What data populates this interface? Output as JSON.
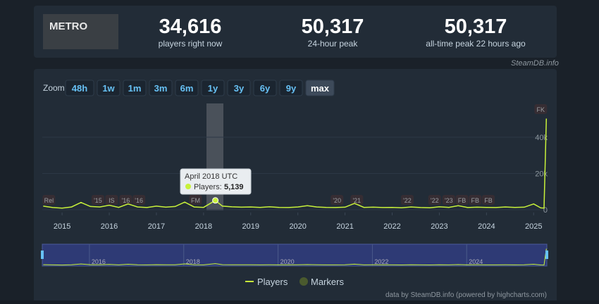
{
  "header": {
    "stats": [
      {
        "value": "34,616",
        "label": "players right now"
      },
      {
        "value": "50,317",
        "label": "24-hour peak"
      },
      {
        "value": "50,317",
        "label": "all-time peak 22 hours ago"
      }
    ],
    "credit": "SteamDB.info"
  },
  "zoom": {
    "label": "Zoom",
    "buttons": [
      "48h",
      "1w",
      "1m",
      "3m",
      "6m",
      "1y",
      "3y",
      "6y",
      "9y",
      "max"
    ]
  },
  "chart_data": {
    "type": "line",
    "x": [
      2014.6,
      2014.8,
      2015.0,
      2015.2,
      2015.4,
      2015.6,
      2015.8,
      2016.0,
      2016.2,
      2016.4,
      2016.6,
      2016.8,
      2017.0,
      2017.2,
      2017.4,
      2017.6,
      2017.8,
      2018.0,
      2018.25,
      2018.4,
      2018.6,
      2018.8,
      2019.0,
      2019.2,
      2019.4,
      2019.6,
      2019.8,
      2020.0,
      2020.2,
      2020.4,
      2020.6,
      2020.8,
      2021.0,
      2021.2,
      2021.4,
      2021.6,
      2021.8,
      2022.0,
      2022.2,
      2022.4,
      2022.6,
      2022.8,
      2023.0,
      2023.2,
      2023.4,
      2023.6,
      2023.8,
      2024.0,
      2024.2,
      2024.4,
      2024.6,
      2024.8,
      2025.0,
      2025.15,
      2025.22,
      2025.27
    ],
    "series": [
      {
        "name": "Players",
        "color": "#c8f23a",
        "values": [
          2000,
          1200,
          900,
          1500,
          4000,
          1800,
          1500,
          2500,
          1300,
          3200,
          1500,
          1200,
          2000,
          1400,
          1800,
          4200,
          1500,
          1300,
          5139,
          2000,
          1600,
          1400,
          1500,
          1300,
          1600,
          1300,
          1200,
          1500,
          2200,
          1500,
          1300,
          1200,
          1400,
          3500,
          1300,
          1400,
          1200,
          1300,
          1100,
          1500,
          1200,
          1100,
          1600,
          1300,
          2200,
          1200,
          1400,
          1300,
          1200,
          1500,
          1300,
          1400,
          3200,
          1000,
          900,
          50317
        ]
      }
    ],
    "markers_name": "Markers",
    "markers": [
      {
        "label": "Rel",
        "x": 2014.72
      },
      {
        "label": "'15",
        "x": 2015.76
      },
      {
        "label": "IS",
        "x": 2016.05
      },
      {
        "label": "'16",
        "x": 2016.35
      },
      {
        "label": "'16",
        "x": 2016.63
      },
      {
        "label": "FM",
        "x": 2017.83
      },
      {
        "label": "'20",
        "x": 2020.83
      },
      {
        "label": "'21",
        "x": 2021.25
      },
      {
        "label": "'22",
        "x": 2022.32
      },
      {
        "label": "'22",
        "x": 2022.9
      },
      {
        "label": "'23",
        "x": 2023.2
      },
      {
        "label": "FB",
        "x": 2023.48
      },
      {
        "label": "FB",
        "x": 2023.76
      },
      {
        "label": "FB",
        "x": 2024.04
      },
      {
        "label": "FK",
        "x": 2025.15
      }
    ],
    "xlim": [
      2014.58,
      2025.28
    ],
    "xticks": [
      2015,
      2016,
      2017,
      2018,
      2019,
      2020,
      2021,
      2022,
      2023,
      2024,
      2025
    ],
    "ylim": [
      0,
      57500
    ],
    "yticks": [
      0,
      {
        "value": 20000,
        "label": "20k"
      },
      {
        "value": 40000,
        "label": "40k"
      }
    ],
    "grid": true,
    "navigator_labels": [
      2016,
      2018,
      2020,
      2022,
      2024
    ],
    "tooltip": {
      "title": "April 2018 UTC",
      "label": "Players:",
      "value": "5,139"
    },
    "footer": "data by SteamDB.info (powered by highcharts.com)"
  }
}
